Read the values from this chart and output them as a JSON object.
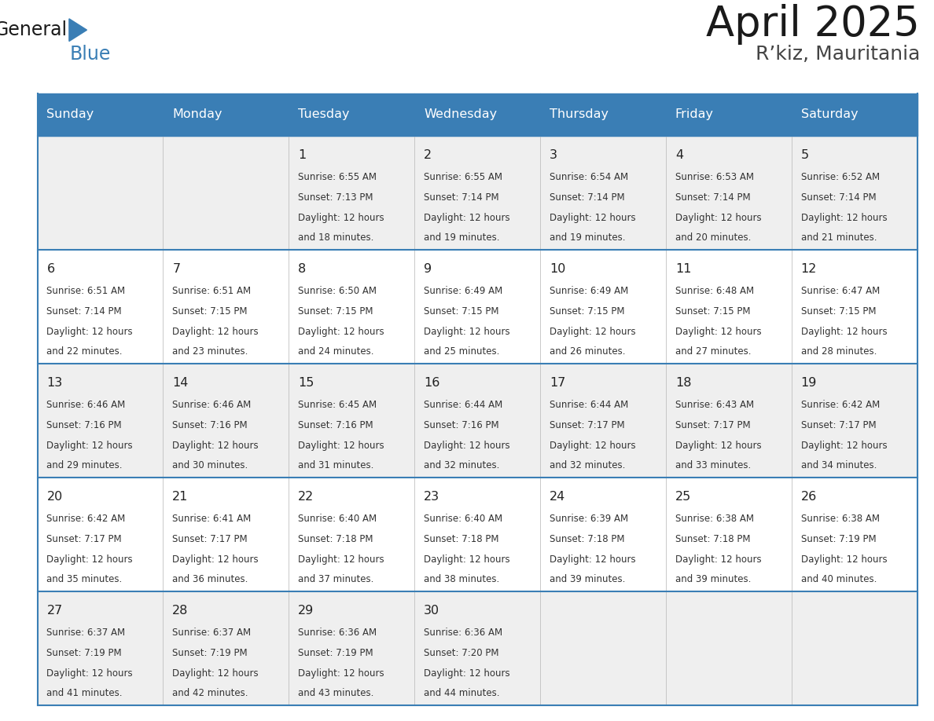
{
  "title": "April 2025",
  "subtitle": "R’kiz, Mauritania",
  "days_of_week": [
    "Sunday",
    "Monday",
    "Tuesday",
    "Wednesday",
    "Thursday",
    "Friday",
    "Saturday"
  ],
  "header_bg": "#3A7EB5",
  "header_text": "#FFFFFF",
  "row_bg_odd": "#EFEFEF",
  "row_bg_even": "#FFFFFF",
  "border_color": "#3A7EB5",
  "text_color": "#333333",
  "day_num_color": "#222222",
  "calendar_data": [
    [
      null,
      null,
      {
        "day": 1,
        "sunrise": "6:55 AM",
        "sunset": "7:13 PM",
        "daylight": "12 hours",
        "daylight2": "and 18 minutes."
      },
      {
        "day": 2,
        "sunrise": "6:55 AM",
        "sunset": "7:14 PM",
        "daylight": "12 hours",
        "daylight2": "and 19 minutes."
      },
      {
        "day": 3,
        "sunrise": "6:54 AM",
        "sunset": "7:14 PM",
        "daylight": "12 hours",
        "daylight2": "and 19 minutes."
      },
      {
        "day": 4,
        "sunrise": "6:53 AM",
        "sunset": "7:14 PM",
        "daylight": "12 hours",
        "daylight2": "and 20 minutes."
      },
      {
        "day": 5,
        "sunrise": "6:52 AM",
        "sunset": "7:14 PM",
        "daylight": "12 hours",
        "daylight2": "and 21 minutes."
      }
    ],
    [
      {
        "day": 6,
        "sunrise": "6:51 AM",
        "sunset": "7:14 PM",
        "daylight": "12 hours",
        "daylight2": "and 22 minutes."
      },
      {
        "day": 7,
        "sunrise": "6:51 AM",
        "sunset": "7:15 PM",
        "daylight": "12 hours",
        "daylight2": "and 23 minutes."
      },
      {
        "day": 8,
        "sunrise": "6:50 AM",
        "sunset": "7:15 PM",
        "daylight": "12 hours",
        "daylight2": "and 24 minutes."
      },
      {
        "day": 9,
        "sunrise": "6:49 AM",
        "sunset": "7:15 PM",
        "daylight": "12 hours",
        "daylight2": "and 25 minutes."
      },
      {
        "day": 10,
        "sunrise": "6:49 AM",
        "sunset": "7:15 PM",
        "daylight": "12 hours",
        "daylight2": "and 26 minutes."
      },
      {
        "day": 11,
        "sunrise": "6:48 AM",
        "sunset": "7:15 PM",
        "daylight": "12 hours",
        "daylight2": "and 27 minutes."
      },
      {
        "day": 12,
        "sunrise": "6:47 AM",
        "sunset": "7:15 PM",
        "daylight": "12 hours",
        "daylight2": "and 28 minutes."
      }
    ],
    [
      {
        "day": 13,
        "sunrise": "6:46 AM",
        "sunset": "7:16 PM",
        "daylight": "12 hours",
        "daylight2": "and 29 minutes."
      },
      {
        "day": 14,
        "sunrise": "6:46 AM",
        "sunset": "7:16 PM",
        "daylight": "12 hours",
        "daylight2": "and 30 minutes."
      },
      {
        "day": 15,
        "sunrise": "6:45 AM",
        "sunset": "7:16 PM",
        "daylight": "12 hours",
        "daylight2": "and 31 minutes."
      },
      {
        "day": 16,
        "sunrise": "6:44 AM",
        "sunset": "7:16 PM",
        "daylight": "12 hours",
        "daylight2": "and 32 minutes."
      },
      {
        "day": 17,
        "sunrise": "6:44 AM",
        "sunset": "7:17 PM",
        "daylight": "12 hours",
        "daylight2": "and 32 minutes."
      },
      {
        "day": 18,
        "sunrise": "6:43 AM",
        "sunset": "7:17 PM",
        "daylight": "12 hours",
        "daylight2": "and 33 minutes."
      },
      {
        "day": 19,
        "sunrise": "6:42 AM",
        "sunset": "7:17 PM",
        "daylight": "12 hours",
        "daylight2": "and 34 minutes."
      }
    ],
    [
      {
        "day": 20,
        "sunrise": "6:42 AM",
        "sunset": "7:17 PM",
        "daylight": "12 hours",
        "daylight2": "and 35 minutes."
      },
      {
        "day": 21,
        "sunrise": "6:41 AM",
        "sunset": "7:17 PM",
        "daylight": "12 hours",
        "daylight2": "and 36 minutes."
      },
      {
        "day": 22,
        "sunrise": "6:40 AM",
        "sunset": "7:18 PM",
        "daylight": "12 hours",
        "daylight2": "and 37 minutes."
      },
      {
        "day": 23,
        "sunrise": "6:40 AM",
        "sunset": "7:18 PM",
        "daylight": "12 hours",
        "daylight2": "and 38 minutes."
      },
      {
        "day": 24,
        "sunrise": "6:39 AM",
        "sunset": "7:18 PM",
        "daylight": "12 hours",
        "daylight2": "and 39 minutes."
      },
      {
        "day": 25,
        "sunrise": "6:38 AM",
        "sunset": "7:18 PM",
        "daylight": "12 hours",
        "daylight2": "and 39 minutes."
      },
      {
        "day": 26,
        "sunrise": "6:38 AM",
        "sunset": "7:19 PM",
        "daylight": "12 hours",
        "daylight2": "and 40 minutes."
      }
    ],
    [
      {
        "day": 27,
        "sunrise": "6:37 AM",
        "sunset": "7:19 PM",
        "daylight": "12 hours",
        "daylight2": "and 41 minutes."
      },
      {
        "day": 28,
        "sunrise": "6:37 AM",
        "sunset": "7:19 PM",
        "daylight": "12 hours",
        "daylight2": "and 42 minutes."
      },
      {
        "day": 29,
        "sunrise": "6:36 AM",
        "sunset": "7:19 PM",
        "daylight": "12 hours",
        "daylight2": "and 43 minutes."
      },
      {
        "day": 30,
        "sunrise": "6:36 AM",
        "sunset": "7:20 PM",
        "daylight": "12 hours",
        "daylight2": "and 44 minutes."
      },
      null,
      null,
      null
    ]
  ],
  "logo_text_general": "General",
  "logo_text_blue": "Blue",
  "logo_color_general": "#1a1a1a",
  "logo_color_blue": "#3A7EB5",
  "logo_triangle_color": "#3A7EB5",
  "fig_width": 11.88,
  "fig_height": 9.18,
  "dpi": 100
}
